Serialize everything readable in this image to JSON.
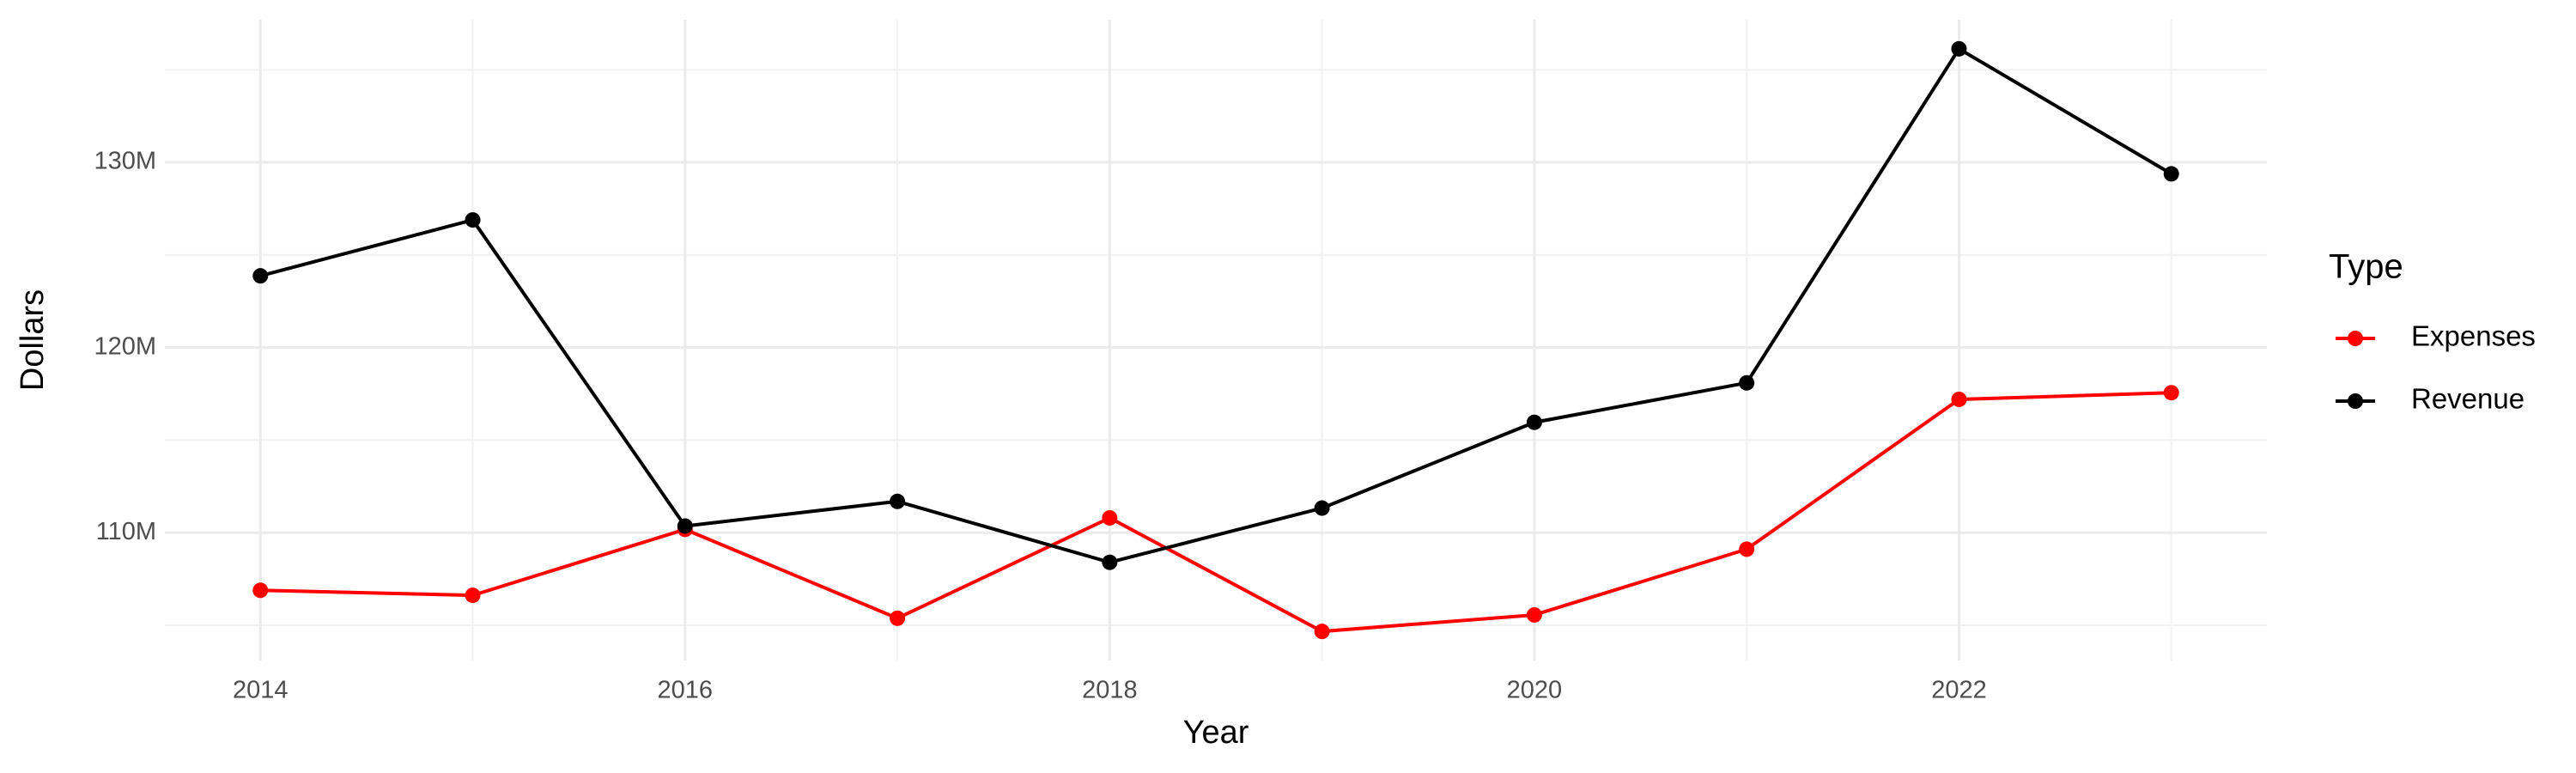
{
  "chart_data": {
    "type": "line",
    "x_label": "Year",
    "y_label": "Dollars",
    "legend_title": "Type",
    "x": [
      2014,
      2015,
      2016,
      2017,
      2018,
      2019,
      2020,
      2021,
      2022,
      2023
    ],
    "series": [
      {
        "name": "Expenses",
        "color": "#ff0000",
        "values": [
          106890000,
          106620000,
          110180000,
          105380000,
          110800000,
          104670000,
          105560000,
          109110000,
          117200000,
          117560000
        ]
      },
      {
        "name": "Revenue",
        "color": "#000000",
        "values": [
          123870000,
          126890000,
          110360000,
          111690000,
          108400000,
          111330000,
          115960000,
          118090000,
          136130000,
          129380000
        ]
      }
    ],
    "xlim": [
      2013.55,
      2023.45
    ],
    "xticks": [
      2014,
      2016,
      2018,
      2020,
      2022
    ],
    "ylim": [
      103100000,
      137700000
    ],
    "yticks": [
      {
        "value": 110000000,
        "label": "110M"
      },
      {
        "value": 120000000,
        "label": "120M"
      },
      {
        "value": 130000000,
        "label": "130M"
      }
    ],
    "grid": true,
    "legend": "right"
  }
}
